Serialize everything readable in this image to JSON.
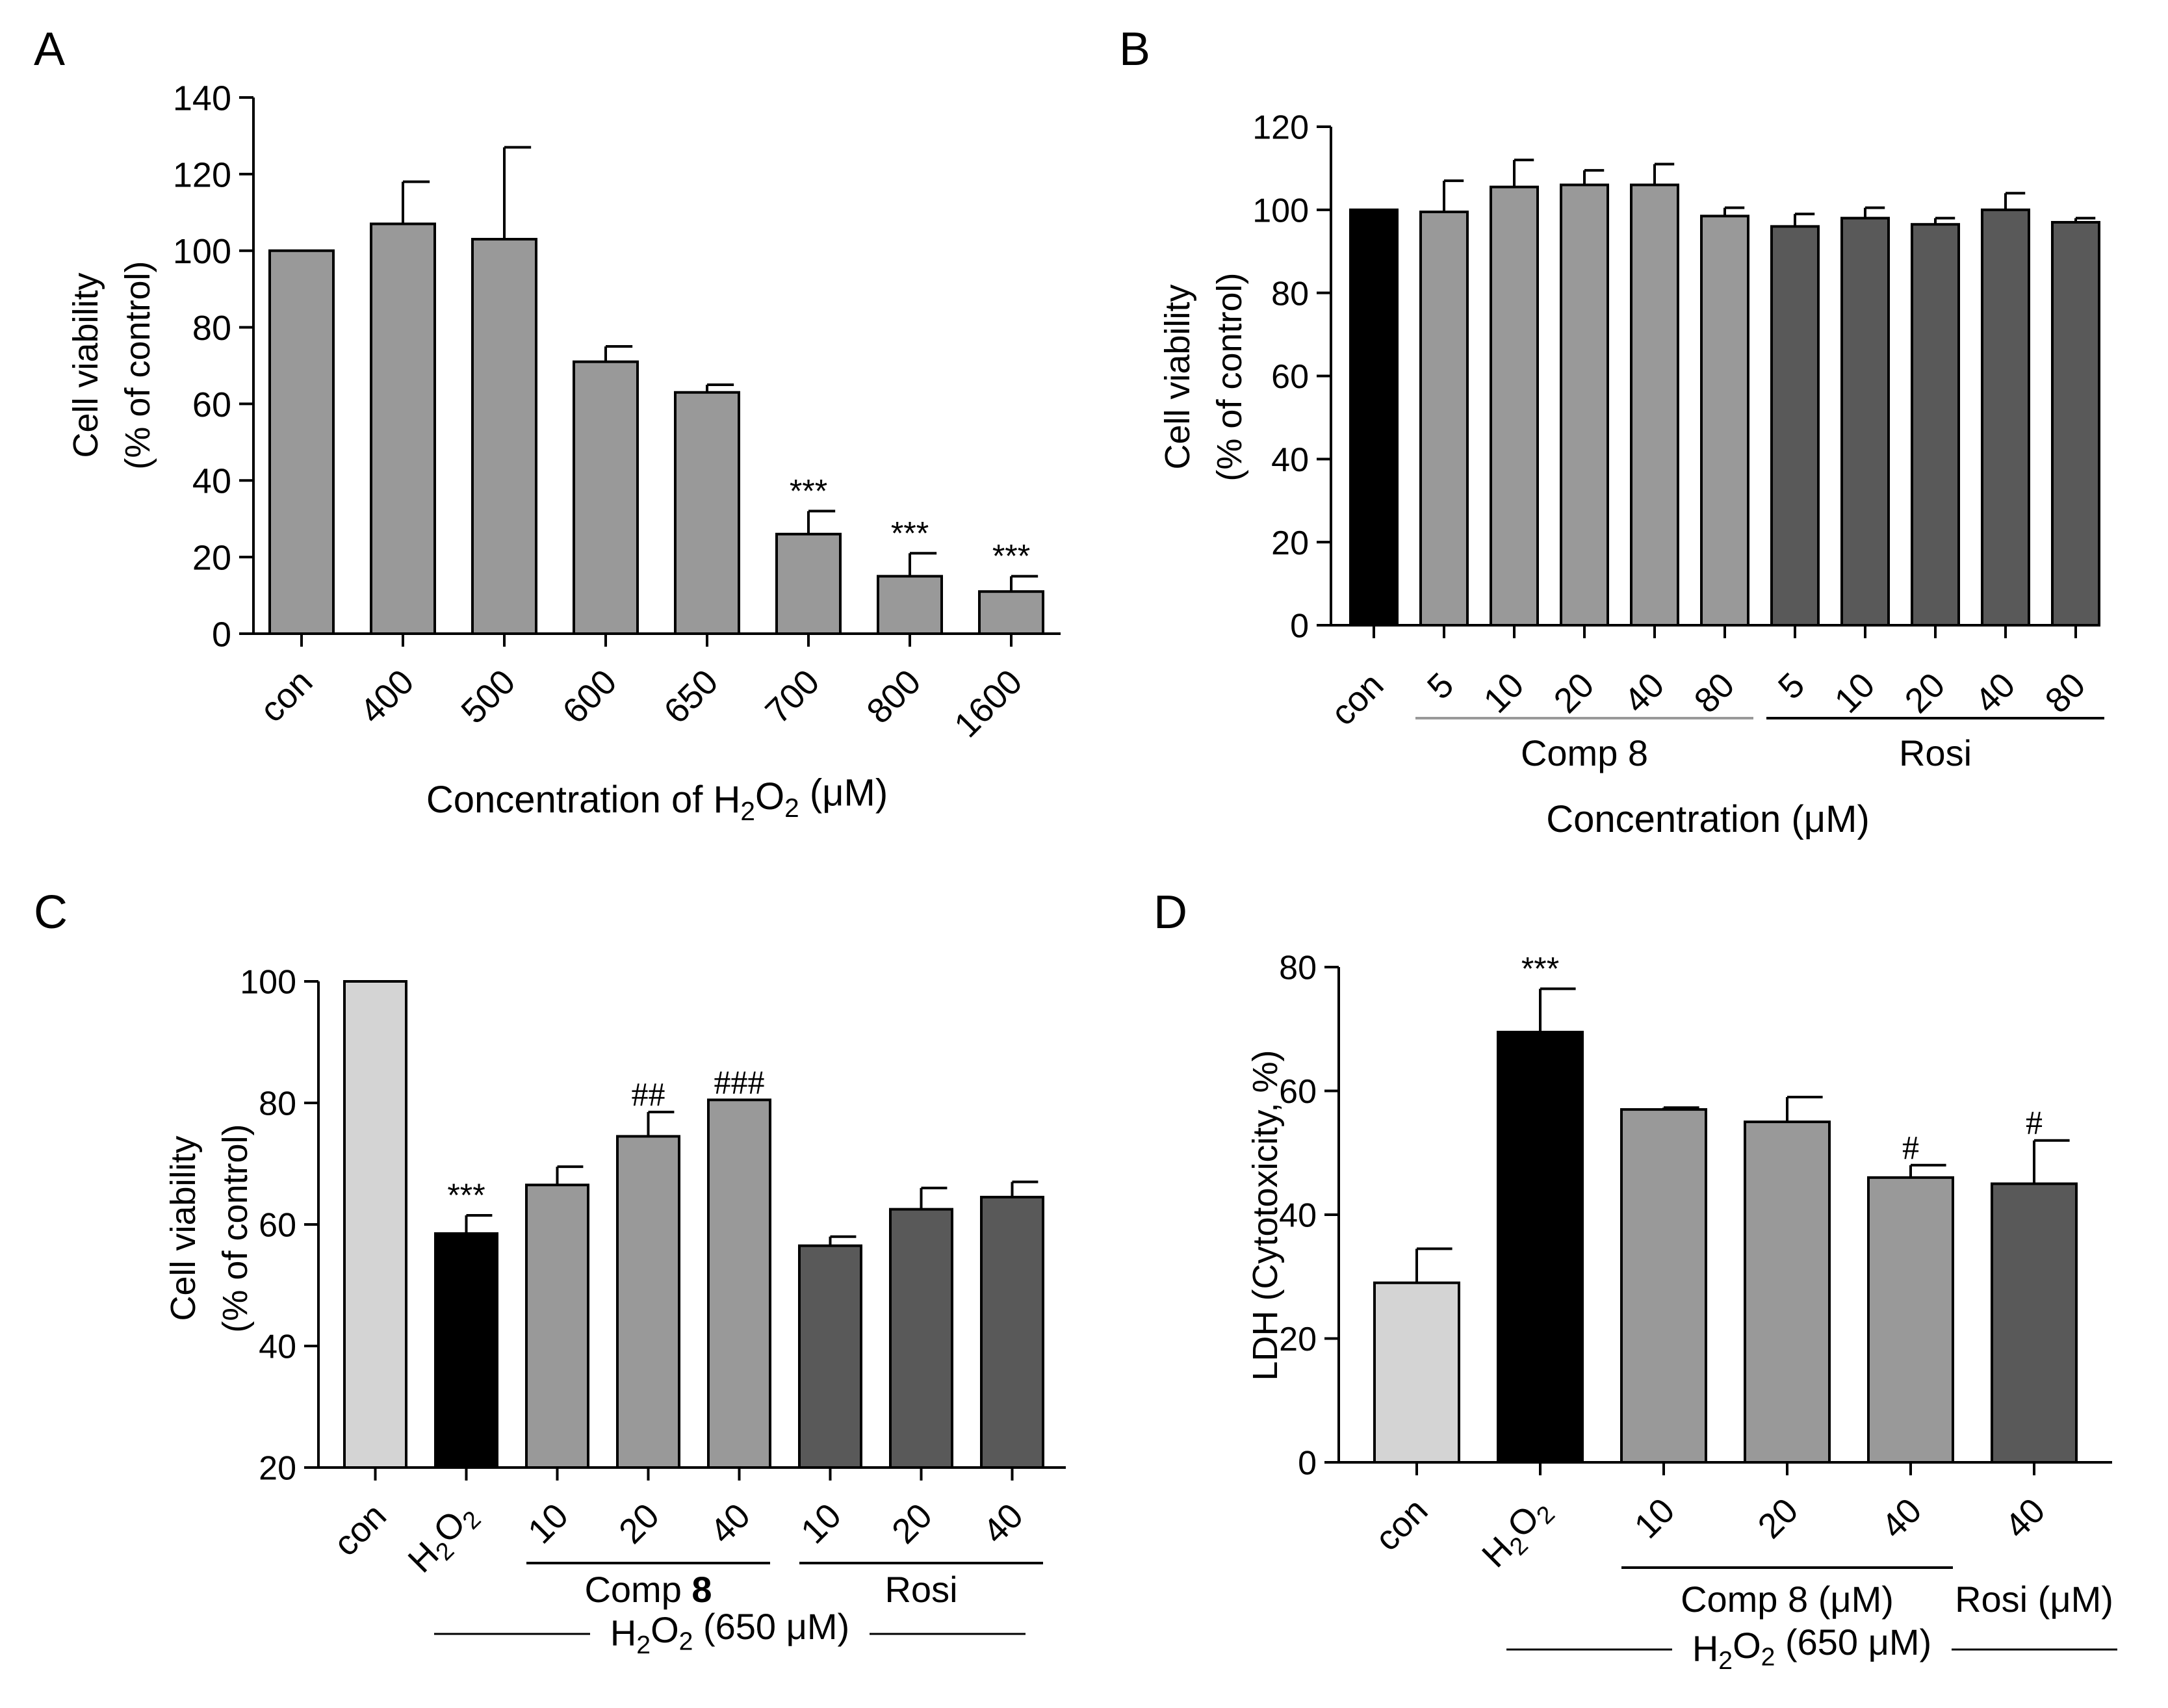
{
  "chart_data": [
    {
      "panel": "A",
      "type": "bar",
      "title": "",
      "xlabel": "Concentration of H₂O₂ (μM)",
      "ylabel": [
        "Cell viability",
        "(% of control)"
      ],
      "ylim": [
        0,
        140
      ],
      "yticks": [
        0,
        20,
        40,
        60,
        80,
        100,
        120,
        140
      ],
      "categories": [
        "con",
        "400",
        "500",
        "600",
        "650",
        "700",
        "800",
        "1600"
      ],
      "values": [
        100,
        107,
        103,
        71,
        63,
        26,
        15,
        11
      ],
      "errors": [
        0,
        11,
        24,
        4,
        2,
        6,
        6,
        4
      ],
      "colors": [
        "#999999",
        "#999999",
        "#999999",
        "#999999",
        "#999999",
        "#999999",
        "#999999",
        "#999999"
      ],
      "annotations": [
        "",
        "",
        "",
        "",
        "",
        "***",
        "***",
        "***"
      ],
      "groups": []
    },
    {
      "panel": "B",
      "type": "bar",
      "title": "",
      "xlabel": "Concentration (μM)",
      "ylabel": [
        "Cell viability",
        "(% of control)"
      ],
      "ylim": [
        0,
        120
      ],
      "yticks": [
        0,
        20,
        40,
        60,
        80,
        100,
        120
      ],
      "categories": [
        "con",
        "5",
        "10",
        "20",
        "40",
        "80",
        "5",
        "10",
        "20",
        "40",
        "80"
      ],
      "values": [
        100,
        99.5,
        105.5,
        106,
        106,
        98.5,
        96,
        98,
        96.5,
        100,
        97
      ],
      "errors": [
        0,
        7.5,
        6.5,
        3.5,
        5,
        2,
        3,
        2.5,
        1.5,
        4,
        1
      ],
      "colors": [
        "#000000",
        "#999999",
        "#999999",
        "#999999",
        "#999999",
        "#999999",
        "#595959",
        "#595959",
        "#595959",
        "#595959",
        "#595959"
      ],
      "annotations": [
        "",
        "",
        "",
        "",
        "",
        "",
        "",
        "",
        "",
        "",
        ""
      ],
      "groups": [
        {
          "label": "Comp 8",
          "from": 1,
          "to": 5,
          "color": "#999999"
        },
        {
          "label": "Rosi",
          "from": 6,
          "to": 10,
          "color": "#000000"
        }
      ]
    },
    {
      "panel": "C",
      "type": "bar",
      "title": "",
      "xlabel": "",
      "ylabel": [
        "Cell viability",
        "(% of control)"
      ],
      "ylim": [
        20,
        100
      ],
      "yticks": [
        20,
        40,
        60,
        80,
        100
      ],
      "categories": [
        "con",
        "H₂O₂",
        "10",
        "20",
        "40",
        "10",
        "20",
        "40"
      ],
      "values": [
        100,
        58.5,
        66.5,
        74.5,
        80.5,
        56.5,
        62.5,
        64.5
      ],
      "errors": [
        0,
        3,
        3,
        4,
        0,
        1.5,
        3.5,
        2.5
      ],
      "colors": [
        "#d4d4d4",
        "#000000",
        "#999999",
        "#999999",
        "#999999",
        "#595959",
        "#595959",
        "#595959"
      ],
      "annotations": [
        "",
        "***",
        "",
        "##",
        "###",
        "",
        "",
        ""
      ],
      "groups": [
        {
          "label_prefix": "Comp ",
          "label_bold": "8",
          "from": 2,
          "to": 4,
          "color": "#000000"
        },
        {
          "label": "Rosi",
          "from": 5,
          "to": 7,
          "color": "#000000"
        }
      ],
      "bracket_label": "H₂O₂ (650 μM)"
    },
    {
      "panel": "D",
      "type": "bar",
      "title": "",
      "xlabel": "",
      "ylabel": [
        "LDH (Cytotoxicity, %)"
      ],
      "ylim": [
        0,
        80
      ],
      "yticks": [
        0,
        20,
        40,
        60,
        80
      ],
      "categories": [
        "con",
        "H₂O₂",
        "10",
        "20",
        "40",
        "40"
      ],
      "values": [
        29,
        69.5,
        57,
        55,
        46,
        45
      ],
      "errors": [
        5.5,
        7,
        0.3,
        4,
        2,
        7
      ],
      "colors": [
        "#d4d4d4",
        "#000000",
        "#999999",
        "#999999",
        "#999999",
        "#595959"
      ],
      "annotations": [
        "",
        "***",
        "",
        "",
        "#",
        "#"
      ],
      "groups": [
        {
          "label": "Comp 8 (μM)",
          "from": 2,
          "to": 4,
          "color": "#000000"
        },
        {
          "label": "Rosi (μM)",
          "from": 5,
          "to": 5,
          "color": "#000000",
          "noline": true
        }
      ],
      "bracket_label": "H₂O₂ (650 μM)"
    }
  ]
}
